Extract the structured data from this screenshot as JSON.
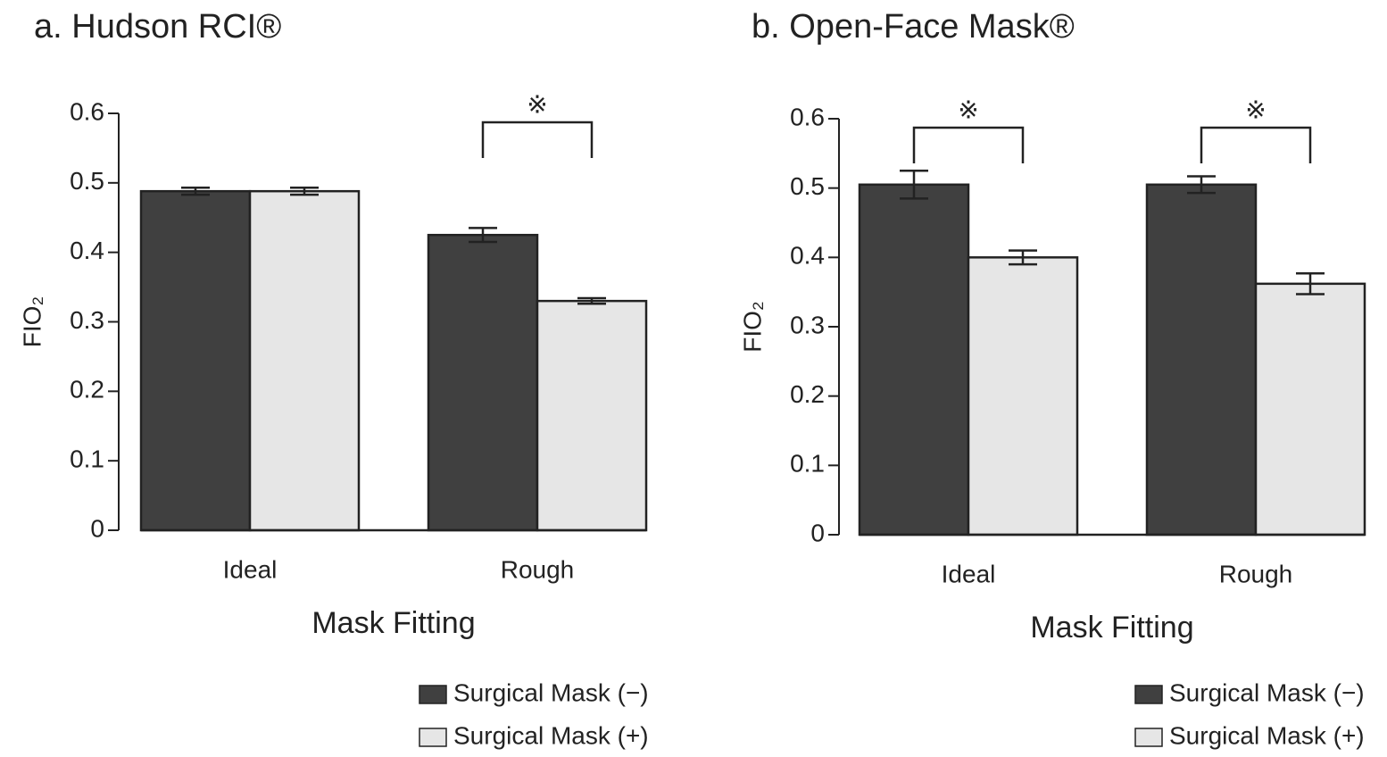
{
  "chart_data": [
    {
      "type": "bar",
      "title": "a. Hudson RCI®",
      "xlabel": "Mask Fitting",
      "ylabel": "FIO₂",
      "categories": [
        "Ideal",
        "Rough"
      ],
      "series": [
        {
          "name": "Surgical Mask (−)",
          "color": "#404040",
          "values": [
            0.488,
            0.425
          ],
          "errors": [
            0.005,
            0.01
          ]
        },
        {
          "name": "Surgical Mask (+)",
          "color": "#e6e6e6",
          "values": [
            0.488,
            0.33
          ],
          "errors": [
            0.005,
            0.004
          ]
        }
      ],
      "ylim": [
        0,
        0.6
      ],
      "yticks": [
        0,
        0.1,
        0.2,
        0.3,
        0.4,
        0.5,
        0.6
      ],
      "legend": "lower right",
      "annotations": [
        {
          "text": "※",
          "category": 1
        }
      ]
    },
    {
      "type": "bar",
      "title": "b. Open-Face Mask®",
      "xlabel": "Mask Fitting",
      "ylabel": "FIO₂",
      "categories": [
        "Ideal",
        "Rough"
      ],
      "series": [
        {
          "name": "Surgical Mask (−)",
          "color": "#404040",
          "values": [
            0.505,
            0.505
          ],
          "errors": [
            0.02,
            0.012
          ]
        },
        {
          "name": "Surgical Mask (+)",
          "color": "#e6e6e6",
          "values": [
            0.4,
            0.362
          ],
          "errors": [
            0.01,
            0.015
          ]
        }
      ],
      "ylim": [
        0,
        0.6
      ],
      "yticks": [
        0,
        0.1,
        0.2,
        0.3,
        0.4,
        0.5,
        0.6
      ],
      "legend": "lower right",
      "annotations": [
        {
          "text": "※",
          "category": 0
        },
        {
          "text": "※",
          "category": 1
        }
      ]
    }
  ]
}
